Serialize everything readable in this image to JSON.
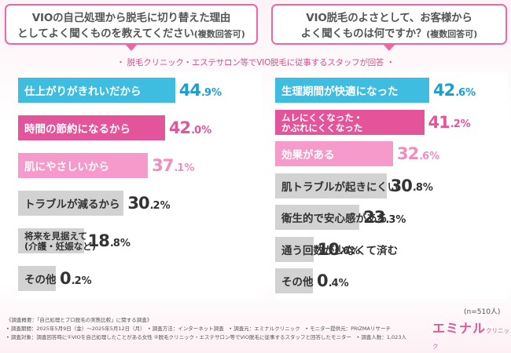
{
  "left_question": {
    "line1": "VIOの自己処理から脱毛に切り替えた理由",
    "line2": "としてよく聞くものを教えてください",
    "note": "(複数回答可)"
  },
  "right_question": {
    "line1": "VIO脱毛のよさとして、お客様から",
    "line2": "よく聞くものは何ですか？",
    "note": "(複数回答可)"
  },
  "subtitle": "・ 脱毛クリニック・エステサロン等でVIO脱毛に従事するスタッフが回答 ・",
  "chart_data": [
    {
      "type": "bar",
      "orientation": "horizontal",
      "title": "VIOの自己処理から脱毛に切り替えた理由としてよく聞くものを教えてください(複数回答可)",
      "unit": "%",
      "bars": [
        {
          "label": "仕上がりがきれいだから",
          "value": 44.9,
          "int": "44",
          "dec": ".9",
          "color": "#3fbde0",
          "text_color": "#1a9fcf"
        },
        {
          "label": "時間の節約になるから",
          "value": 42.0,
          "int": "42",
          "dec": ".0",
          "color": "#e4549a",
          "text_color": "#e4549a"
        },
        {
          "label": "肌にやさしいから",
          "value": 37.1,
          "int": "37",
          "dec": ".1",
          "color": "#f59acb",
          "text_color": "#f08cc0"
        },
        {
          "label": "トラブルが減るから",
          "value": 30.2,
          "int": "30",
          "dec": ".2",
          "color": "#d2d2d2",
          "text_color": "#333333"
        },
        {
          "label": "将来を見据えて",
          "sublabel": "(介護・妊娠など)",
          "value": 18.8,
          "int": "18",
          "dec": ".8",
          "color": "#d2d2d2",
          "text_color": "#333333"
        },
        {
          "label": "その他",
          "value": 0.2,
          "int": "0",
          "dec": ".2",
          "color": "#d2d2d2",
          "text_color": "#333333"
        }
      ]
    },
    {
      "type": "bar",
      "orientation": "horizontal",
      "title": "VIO脱毛のよさとして、お客様からよく聞くものは何ですか？(複数回答可)",
      "unit": "%",
      "bars": [
        {
          "label": "生理期間が快適になった",
          "value": 42.6,
          "int": "42",
          "dec": ".6",
          "color": "#3fbde0",
          "text_color": "#1a9fcf"
        },
        {
          "label": "ムレにくくなった・",
          "sublabel": "かぶれにくくなった",
          "value": 41.2,
          "int": "41",
          "dec": ".2",
          "color": "#e4549a",
          "text_color": "#e4549a"
        },
        {
          "label": "効果がある",
          "value": 32.6,
          "int": "32",
          "dec": ".6",
          "color": "#f59acb",
          "text_color": "#f08cc0"
        },
        {
          "label": "肌トラブルが起きにくい",
          "value": 30.8,
          "int": "30",
          "dec": ".8",
          "color": "#d2d2d2",
          "text_color": "#333333"
        },
        {
          "label": "衛生的で安心感がある",
          "value": 23.3,
          "int": "23",
          "dec": ".3",
          "color": "#d2d2d2",
          "text_color": "#333333"
        },
        {
          "label": "通う回数が少なくて済む",
          "value": 10.6,
          "int": "10",
          "dec": ".6",
          "color": "#d2d2d2",
          "text_color": "#333333"
        },
        {
          "label": "その他",
          "value": 0.4,
          "int": "0",
          "dec": ".4",
          "color": "#d2d2d2",
          "text_color": "#333333"
        }
      ]
    }
  ],
  "sample_size": "(n=510人)",
  "footnotes": [
    "《調査概要：「自己処理とプロ脱毛の実態比較」に関する調査》",
    "• 調査期間：2025年5月9日（金）～2025年5月12日（月）　• 調査方法：インターネット調査　• 調査元：エミナルクリニック　• モニター提供元：PRIZMAリサーチ",
    "• 調査対象：調査回答時に①VIOを自己処理したことがある女性 ②脱毛クリニック・エステサロン等でVIO脱毛に従事するスタッフと回答したモニター　• 調査人数：1,023人"
  ],
  "logo": {
    "main": "エミナル",
    "sub": "クリニック"
  }
}
